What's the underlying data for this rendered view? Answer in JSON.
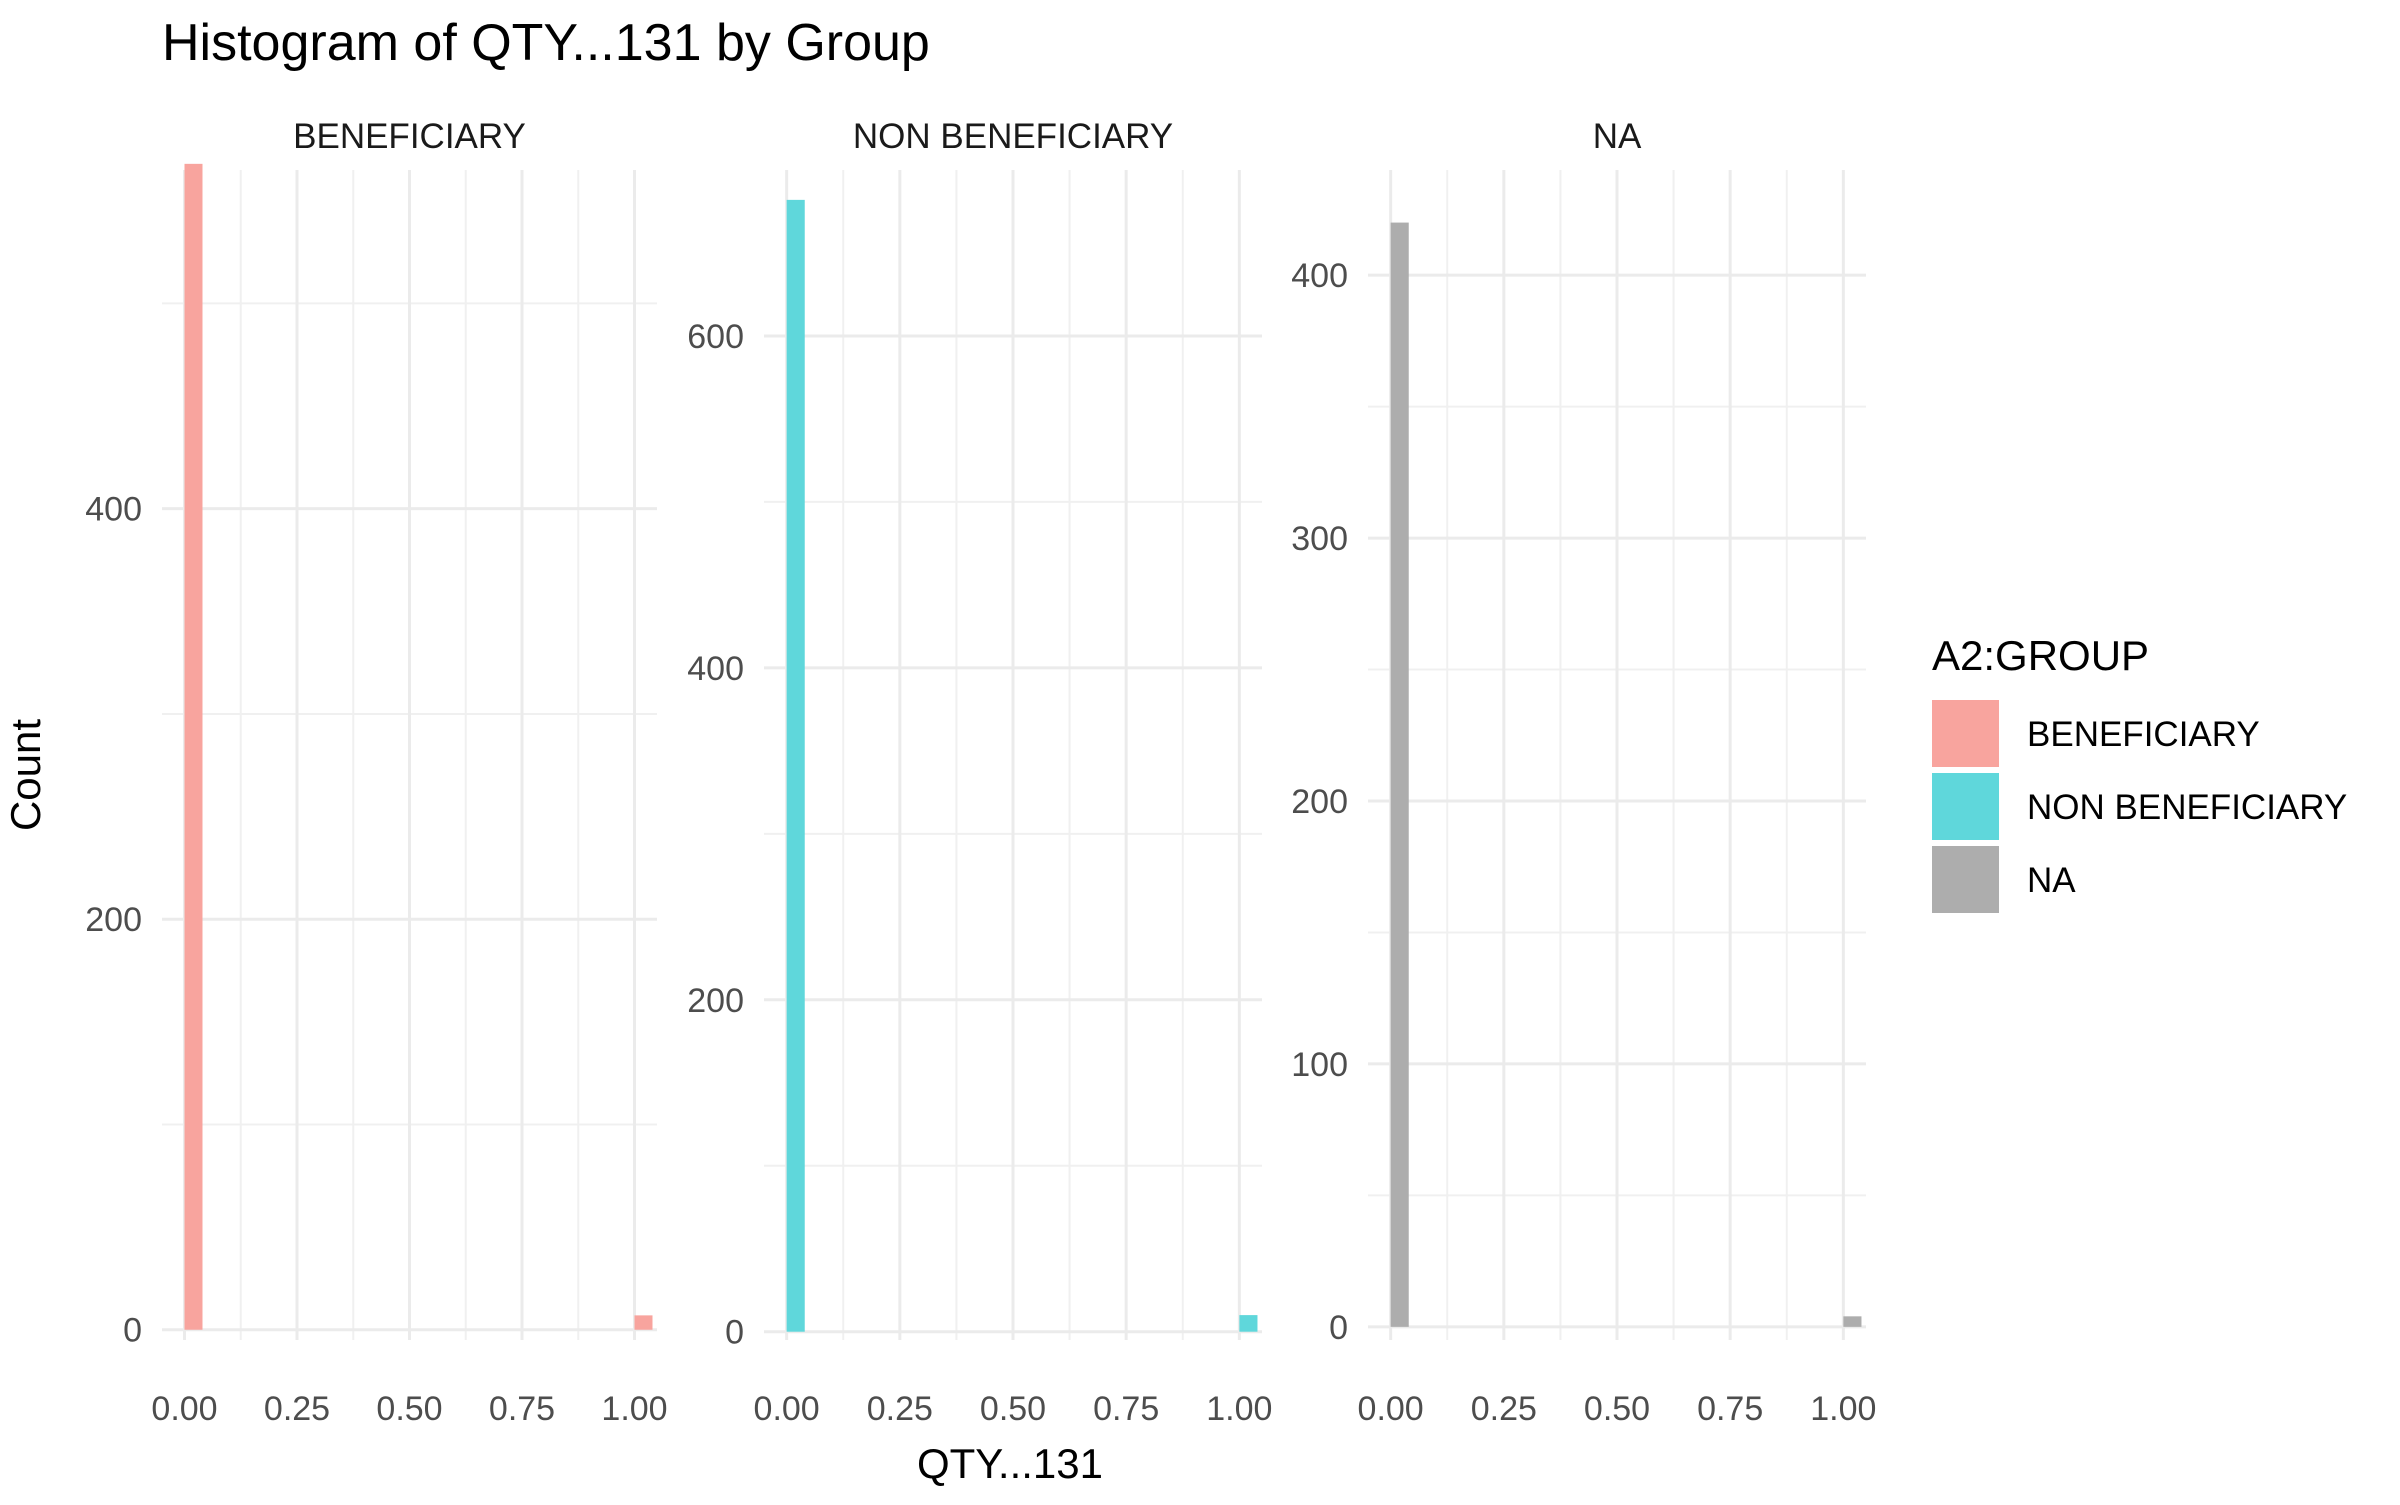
{
  "chart_data": {
    "type": "bar",
    "title": "Histogram of QTY...131 by Group",
    "xlabel": "QTY...131",
    "ylabel": "Count",
    "grid": true,
    "legend_position": "right",
    "legend": {
      "title": "A2:GROUP",
      "entries": [
        {
          "label": "BENEFICIARY",
          "color": "#F8A49E"
        },
        {
          "label": "NON BENEFICIARY",
          "color": "#5FD7DB"
        },
        {
          "label": "NA",
          "color": "#ADADAD"
        }
      ]
    },
    "panels": [
      {
        "label": "BENEFICIARY",
        "color": "#F8A49E",
        "xlim": [
          -0.05,
          1.05
        ],
        "ylim": [
          -5,
          565
        ],
        "xticks": [
          0.0,
          0.25,
          0.5,
          0.75,
          1.0
        ],
        "xtick_labels": [
          "0.00",
          "0.25",
          "0.50",
          "0.75",
          "1.00"
        ],
        "yticks": [
          0,
          200,
          400
        ],
        "ytick_labels": [
          "0",
          "200",
          "400"
        ],
        "y_minor": [
          100,
          300,
          500
        ],
        "bars": [
          {
            "x0": 0.0,
            "x1": 0.04,
            "count": 568
          },
          {
            "x0": 1.0,
            "x1": 1.04,
            "count": 7
          }
        ]
      },
      {
        "label": "NON BENEFICIARY",
        "color": "#5FD7DB",
        "xlim": [
          -0.05,
          1.05
        ],
        "ylim": [
          -5,
          700
        ],
        "xticks": [
          0.0,
          0.25,
          0.5,
          0.75,
          1.0
        ],
        "xtick_labels": [
          "0.00",
          "0.25",
          "0.50",
          "0.75",
          "1.00"
        ],
        "yticks": [
          0,
          200,
          400,
          600
        ],
        "ytick_labels": [
          "0",
          "200",
          "400",
          "600"
        ],
        "y_minor": [
          100,
          300,
          500
        ],
        "bars": [
          {
            "x0": 0.0,
            "x1": 0.04,
            "count": 682
          },
          {
            "x0": 1.0,
            "x1": 1.04,
            "count": 10
          }
        ]
      },
      {
        "label": "NA",
        "color": "#ADADAD",
        "xlim": [
          -0.05,
          1.05
        ],
        "ylim": [
          -5,
          440
        ],
        "xticks": [
          0.0,
          0.25,
          0.5,
          0.75,
          1.0
        ],
        "xtick_labels": [
          "0.00",
          "0.25",
          "0.50",
          "0.75",
          "1.00"
        ],
        "yticks": [
          0,
          100,
          200,
          300,
          400
        ],
        "ytick_labels": [
          "0",
          "100",
          "200",
          "300",
          "400"
        ],
        "y_minor": [
          50,
          150,
          250,
          350
        ],
        "bars": [
          {
            "x0": 0.0,
            "x1": 0.04,
            "count": 420
          },
          {
            "x0": 1.0,
            "x1": 1.04,
            "count": 4
          }
        ]
      }
    ]
  }
}
